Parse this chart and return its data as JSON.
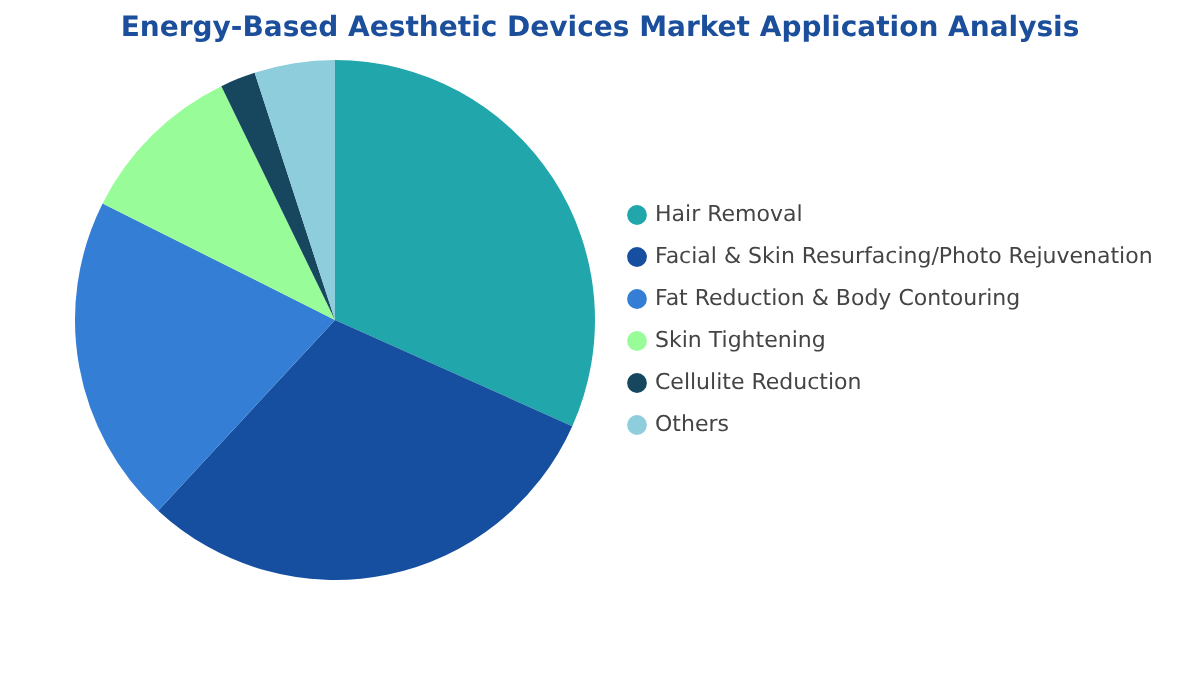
{
  "chart_data": {
    "type": "pie",
    "title": "Energy-Based Aesthetic Devices Market Application Analysis",
    "categories": [
      "Hair Removal",
      "Facial & Skin Resurfacing/Photo Rejuvenation",
      "Fat Reduction & Body Contouring",
      "Skin Tightening",
      "Cellulite Reduction",
      "Others"
    ],
    "values": [
      31.7,
      30.2,
      20.5,
      10.4,
      2.2,
      5.0
    ],
    "colors": [
      "#21a6ab",
      "#164f9f",
      "#347ed6",
      "#98fd98",
      "#17475f",
      "#8dcddc"
    ],
    "legend": "right"
  }
}
